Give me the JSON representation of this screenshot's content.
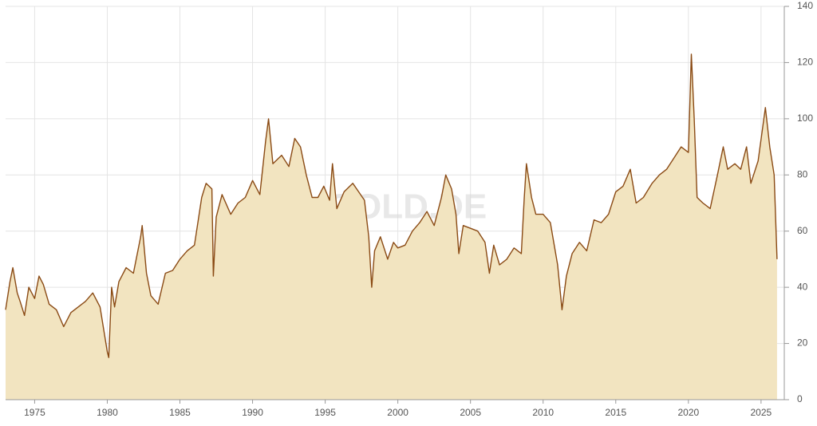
{
  "chart_data": {
    "type": "area",
    "watermark": "GOLD.DE",
    "x": [
      1973.0,
      1973.3,
      1973.5,
      1973.8,
      1974.0,
      1974.3,
      1974.6,
      1975.0,
      1975.3,
      1975.6,
      1976.0,
      1976.5,
      1977.0,
      1977.5,
      1978.0,
      1978.5,
      1979.0,
      1979.5,
      1980.0,
      1980.1,
      1980.3,
      1980.5,
      1980.8,
      1981.3,
      1981.8,
      1982.3,
      1982.4,
      1982.7,
      1983.0,
      1983.5,
      1984.0,
      1984.5,
      1985.0,
      1985.5,
      1986.0,
      1986.5,
      1986.8,
      1987.2,
      1987.3,
      1987.5,
      1987.9,
      1988.5,
      1989.0,
      1989.5,
      1990.0,
      1990.5,
      1990.9,
      1991.1,
      1991.4,
      1992.0,
      1992.5,
      1992.9,
      1993.3,
      1993.7,
      1994.1,
      1994.5,
      1994.9,
      1995.3,
      1995.5,
      1995.8,
      1996.3,
      1996.9,
      1997.3,
      1997.7,
      1998.0,
      1998.2,
      1998.4,
      1998.8,
      1999.3,
      1999.7,
      2000.0,
      2000.5,
      2001.0,
      2001.5,
      2002.0,
      2002.5,
      2003.0,
      2003.3,
      2003.7,
      2004.0,
      2004.2,
      2004.5,
      2005.0,
      2005.5,
      2006.0,
      2006.3,
      2006.6,
      2007.0,
      2007.5,
      2008.0,
      2008.5,
      2008.7,
      2008.85,
      2009.2,
      2009.5,
      2010.0,
      2010.5,
      2011.0,
      2011.3,
      2011.6,
      2012.0,
      2012.5,
      2013.0,
      2013.5,
      2014.0,
      2014.5,
      2015.0,
      2015.5,
      2016.0,
      2016.4,
      2016.9,
      2017.5,
      2018.0,
      2018.5,
      2019.0,
      2019.5,
      2020.0,
      2020.2,
      2020.4,
      2020.6,
      2021.0,
      2021.5,
      2022.0,
      2022.4,
      2022.7,
      2023.2,
      2023.6,
      2024.0,
      2024.3,
      2024.8,
      2025.3,
      2025.6,
      2025.9,
      2026.1
    ],
    "values": [
      32,
      42,
      47,
      38,
      35,
      30,
      40,
      36,
      44,
      41,
      34,
      32,
      26,
      31,
      33,
      35,
      38,
      33,
      17,
      15,
      40,
      33,
      42,
      47,
      45,
      58,
      62,
      45,
      37,
      34,
      45,
      46,
      50,
      53,
      55,
      72,
      77,
      75,
      44,
      65,
      73,
      66,
      70,
      72,
      78,
      73,
      92,
      100,
      84,
      87,
      83,
      93,
      90,
      80,
      72,
      72,
      76,
      71,
      84,
      68,
      74,
      77,
      74,
      71,
      58,
      40,
      53,
      58,
      50,
      56,
      54,
      55,
      60,
      63,
      67,
      62,
      72,
      80,
      75,
      66,
      52,
      62,
      61,
      60,
      56,
      45,
      55,
      48,
      50,
      54,
      52,
      72,
      84,
      72,
      66,
      66,
      63,
      48,
      32,
      44,
      52,
      56,
      53,
      64,
      63,
      66,
      74,
      76,
      82,
      70,
      72,
      77,
      80,
      82,
      86,
      90,
      88,
      123,
      100,
      72,
      70,
      68,
      80,
      90,
      82,
      84,
      82,
      90,
      77,
      85,
      104,
      90,
      80,
      50
    ],
    "line_color": "#8a4a14",
    "fill_color": "#f2e4c0",
    "xlim": [
      1973,
      2026.6
    ],
    "xticks": [
      1975,
      1980,
      1985,
      1990,
      1995,
      2000,
      2005,
      2010,
      2015,
      2020,
      2025
    ],
    "ylim": [
      0,
      140
    ],
    "yticks": [
      0,
      20,
      40,
      60,
      80,
      100,
      120,
      140
    ],
    "grid": true
  }
}
